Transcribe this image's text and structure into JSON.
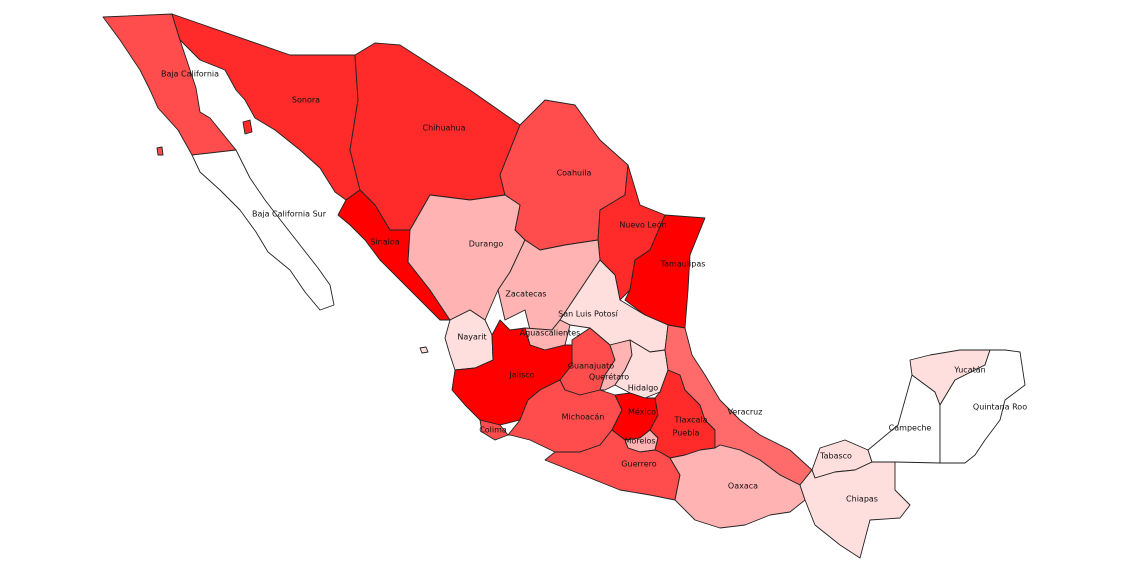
{
  "colors": {
    "deep": "#ff0000",
    "strong": "#ff2a2a",
    "medium": "#ff4d4d",
    "light": "#ffb3b3",
    "pale": "#ffdede",
    "none": "#ffffff"
  },
  "states": {
    "baja_california": {
      "label": "Baja California",
      "fill": "#ff4d4d"
    },
    "baja_california_sur": {
      "label": "Baja California Sur",
      "fill": "#ffffff"
    },
    "sonora": {
      "label": "Sonora",
      "fill": "#ff2a2a"
    },
    "chihuahua": {
      "label": "Chihuahua",
      "fill": "#ff2a2a"
    },
    "coahuila": {
      "label": "Coahuila",
      "fill": "#ff4d4d"
    },
    "nuevo_leon": {
      "label": "Nuevo León",
      "fill": "#ff2a2a"
    },
    "tamaulipas": {
      "label": "Tamaulipas",
      "fill": "#ff0000"
    },
    "sinaloa": {
      "label": "Sinaloa",
      "fill": "#ff0000"
    },
    "durango": {
      "label": "Durango",
      "fill": "#ffb3b3"
    },
    "zacatecas": {
      "label": "Zacatecas",
      "fill": "#ffb3b3"
    },
    "san_luis_potosi": {
      "label": "San Luis Potosí",
      "fill": "#ffdede"
    },
    "nayarit": {
      "label": "Nayarit",
      "fill": "#ffdede"
    },
    "aguascalientes": {
      "label": "Aguascalientes",
      "fill": "#ffb3b3"
    },
    "jalisco": {
      "label": "Jalisco",
      "fill": "#ff0000"
    },
    "guanajuato": {
      "label": "Guanajuato",
      "fill": "#ff4d4d"
    },
    "queretaro": {
      "label": "Querétaro",
      "fill": "#ffb3b3"
    },
    "hidalgo": {
      "label": "Hidalgo",
      "fill": "#ffdede"
    },
    "colima": {
      "label": "Colima",
      "fill": "#ff4d4d"
    },
    "michoacan": {
      "label": "Michoacán",
      "fill": "#ff4d4d"
    },
    "mexico": {
      "label": "México",
      "fill": "#ff0000"
    },
    "tlaxcala": {
      "label": "Tlaxcala",
      "fill": "#ffffff"
    },
    "morelos": {
      "label": "Morelos",
      "fill": "#ffb3b3"
    },
    "puebla": {
      "label": "Puebla",
      "fill": "#ff2a2a"
    },
    "guerrero": {
      "label": "Guerrero",
      "fill": "#ff4d4d"
    },
    "veracruz": {
      "label": "Veracruz",
      "fill": "#ff6b6b"
    },
    "oaxaca": {
      "label": "Oaxaca",
      "fill": "#ffb3b3"
    },
    "tabasco": {
      "label": "Tabasco",
      "fill": "#ffdede"
    },
    "chiapas": {
      "label": "Chiapas",
      "fill": "#ffdede"
    },
    "campeche": {
      "label": "Campeche",
      "fill": "#ffffff"
    },
    "yucatan": {
      "label": "Yucatán",
      "fill": "#ffdede"
    },
    "quintana_roo": {
      "label": "Quintana Roo",
      "fill": "#ffffff"
    }
  }
}
